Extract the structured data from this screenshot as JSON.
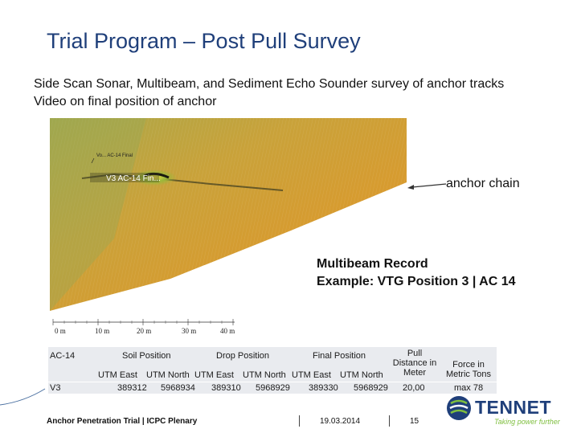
{
  "title": "Trial Program – Post Pull Survey",
  "bullets": [
    "Side Scan Sonar, Multibeam, and Sediment Echo Sounder survey of anchor tracks",
    "Video on final position of anchor"
  ],
  "image": {
    "overlay_label_1": "Vo... AC-14 Final",
    "overlay_label_2": "V3 AC-14 Fin...",
    "scale_labels": [
      "0 m",
      "10 m",
      "20 m",
      "30 m",
      "40 m"
    ],
    "callout": "anchor chain",
    "record_line1": "Multibeam Record",
    "record_line2": "Example: VTG Position 3 | AC 14"
  },
  "table": {
    "anchor": "AC-14",
    "soil_position": "Soil Position",
    "drop_position": "Drop Position",
    "final_position": "Final Position",
    "pull_distance_1": "Pull",
    "pull_distance_2": "Distance in",
    "pull_distance_3": "Meter",
    "force_1": "Force in",
    "force_2": "Metric Tons",
    "utm_east_1": "UTM East",
    "utm_north_1": "UTM North",
    "utm_east_2": "UTM East",
    "utm_north_2": "UTM North",
    "utm_east_3": "UTM East",
    "utm_north_3": "UTM North",
    "row": {
      "label": "V3",
      "soil_east": "389312",
      "soil_north": "5968934",
      "drop_east": "389310",
      "drop_north": "5968929",
      "final_east": "389330",
      "final_north": "5968929",
      "distance": "20,00",
      "force": "max 78"
    }
  },
  "footer": {
    "event": "Anchor Penetration Trial | ICPC Plenary",
    "date": "19.03.2014",
    "page": "15"
  },
  "logo": {
    "name": "TENNET",
    "tagline": "Taking power further",
    "color_text": "#1f3f7a",
    "color_accent": "#7fbf3f"
  },
  "colors": {
    "title": "#1f3f7a",
    "table_bg": "#e9ebef"
  }
}
